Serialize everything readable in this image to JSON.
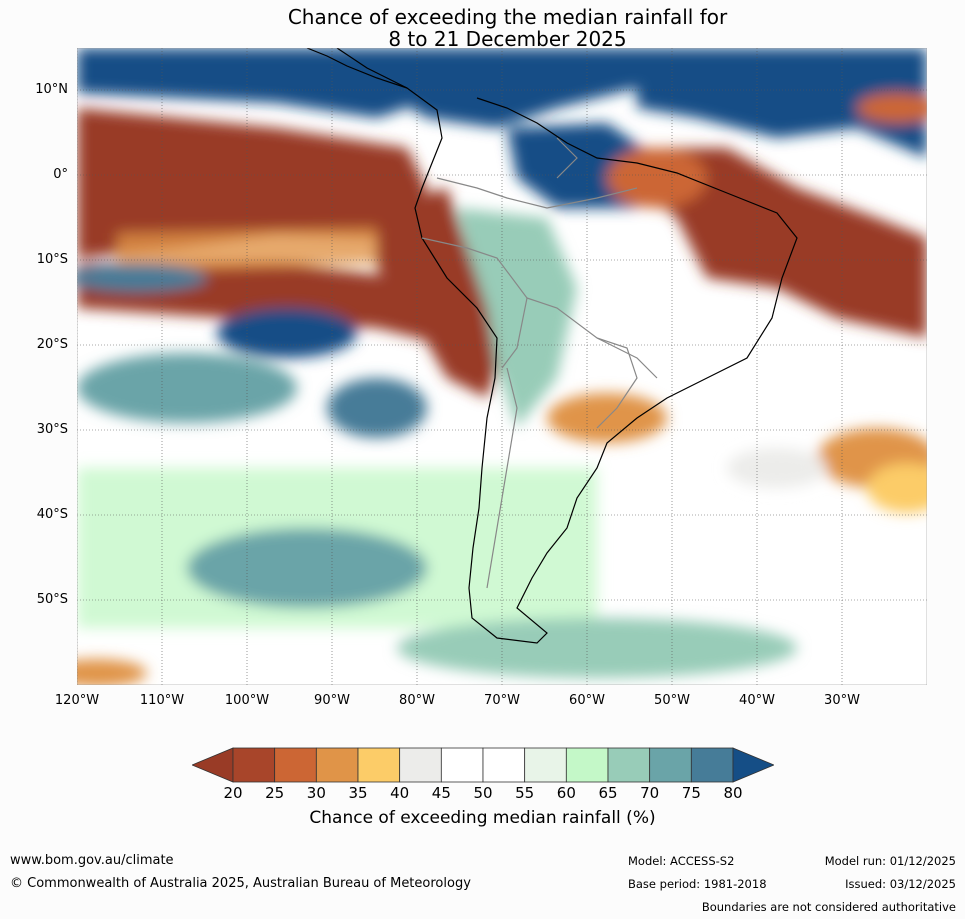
{
  "title": {
    "line1": "Chance of exceeding the median rainfall for",
    "line2": "8 to 21 December 2025"
  },
  "map": {
    "region": "South America",
    "lat_labels": [
      "10°N",
      "0°",
      "10°S",
      "20°S",
      "30°S",
      "40°S",
      "50°S"
    ],
    "lon_labels": [
      "120°W",
      "110°W",
      "100°W",
      "90°W",
      "80°W",
      "70°W",
      "60°W",
      "50°W",
      "40°W",
      "30°W"
    ]
  },
  "colorbar": {
    "ticks": [
      "20",
      "25",
      "30",
      "35",
      "40",
      "45",
      "50",
      "55",
      "60",
      "65",
      "70",
      "75",
      "80"
    ],
    "colors": [
      "#a8452a",
      "#cc6634",
      "#e09448",
      "#fccc68",
      "#ececea",
      "#ffffff",
      "#ffffff",
      "#e8f4e8",
      "#c4f8c8",
      "#98ccb8",
      "#6aa4a8",
      "#467c98"
    ],
    "under_color": "#993b26",
    "over_color": "#154e86",
    "label": "Chance of exceeding median rainfall (%)"
  },
  "footer": {
    "website": "www.bom.gov.au/climate",
    "copyright": "© Commonwealth of Australia 2025, Australian Bureau of Meteorology",
    "model": "Model: ACCESS-S2",
    "base_period": "Base period: 1981-2018",
    "model_run": "Model run: 01/12/2025",
    "issued": "Issued: 03/12/2025",
    "disclaimer": "Boundaries are not considered authoritative"
  }
}
